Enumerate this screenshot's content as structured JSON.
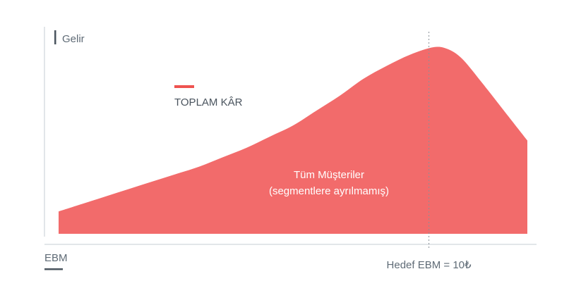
{
  "chart_data": {
    "type": "area",
    "ylabel": "Gelir",
    "xlabel": "EBM",
    "legend": [
      {
        "label": "TOPLAM KÂR",
        "color": "#ef5350"
      }
    ],
    "series": [
      {
        "name": "Tüm Müşteriler (segmentlere ayrılmamış)",
        "label_line1": "Tüm Müşteriler",
        "label_line2": "(segmentlere ayrılmamış)",
        "color": "#f26b6b",
        "x": [
          0,
          0.05,
          0.1,
          0.15,
          0.2,
          0.25,
          0.3,
          0.35,
          0.4,
          0.45,
          0.5,
          0.55,
          0.6,
          0.65,
          0.7,
          0.75,
          0.8,
          0.83,
          0.86,
          0.9,
          0.95,
          1.0
        ],
        "y": [
          0.12,
          0.16,
          0.2,
          0.24,
          0.28,
          0.32,
          0.36,
          0.41,
          0.46,
          0.52,
          0.58,
          0.66,
          0.74,
          0.83,
          0.9,
          0.96,
          1.0,
          0.99,
          0.94,
          0.82,
          0.66,
          0.5
        ]
      }
    ],
    "marker": {
      "x": 0.79,
      "label": "Hedef EBM = 10₺"
    },
    "grid": false
  }
}
